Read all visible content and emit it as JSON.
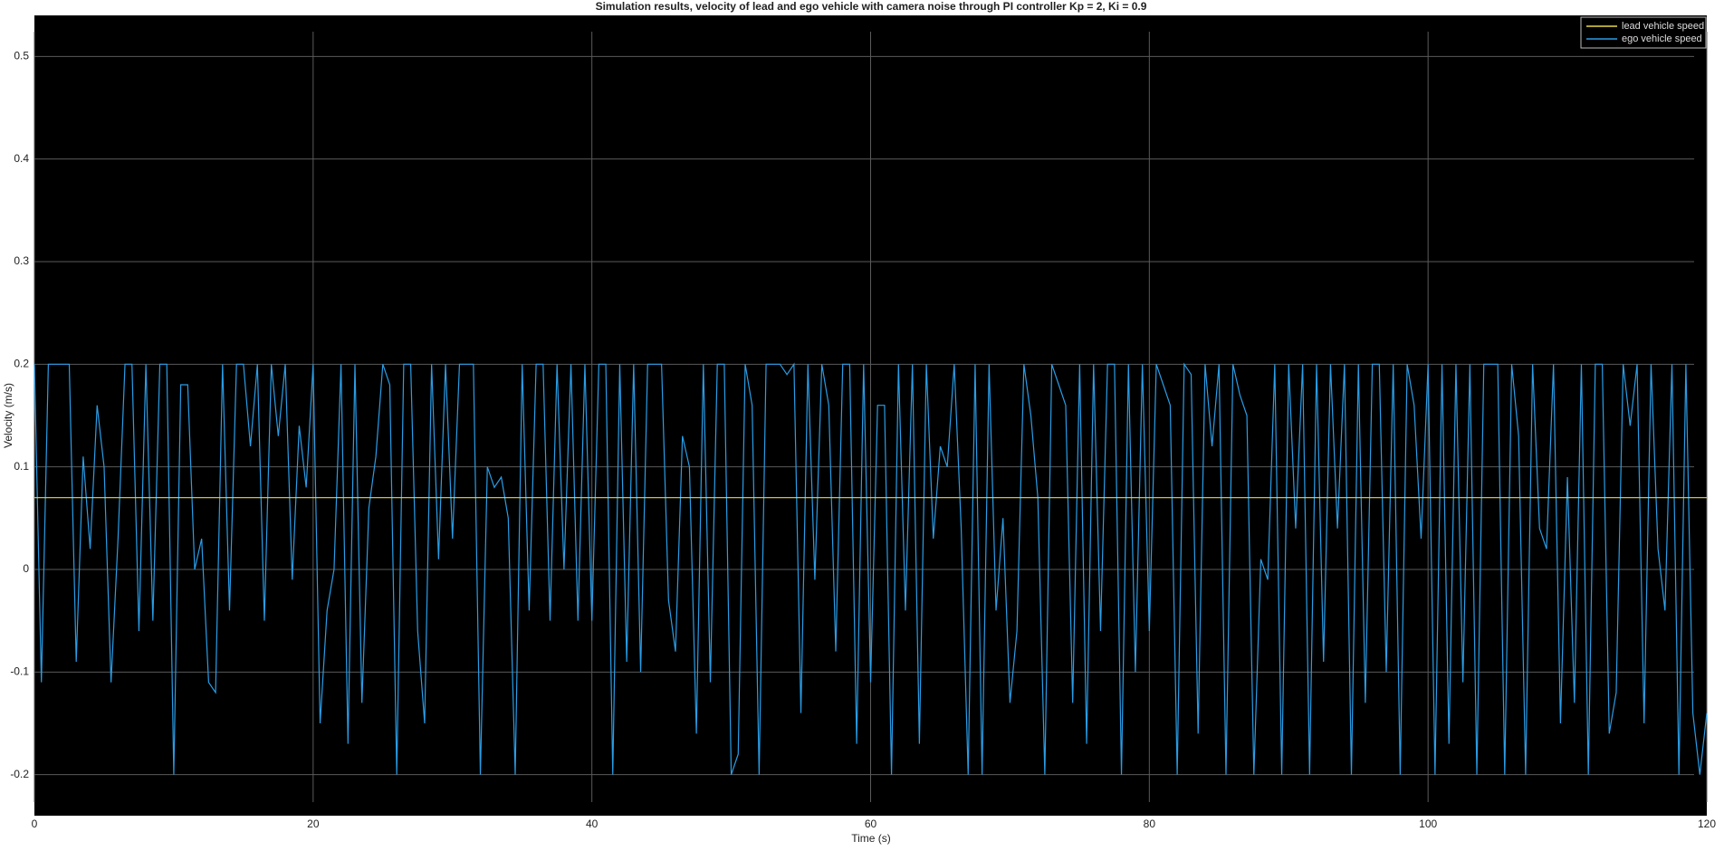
{
  "chart_data": {
    "type": "line",
    "title": "Simulation results, velocity of lead and ego vehicle with camera noise through PI controller Kp = 2, Ki = 0.9",
    "x_label": "Time (s)",
    "y_label": "Velocity (m/s)",
    "xlim": [
      0,
      120
    ],
    "xticks": [
      0,
      20,
      40,
      60,
      80,
      100,
      120
    ],
    "ylim": [
      -0.24,
      0.54
    ],
    "yticks": [
      -0.2,
      -0.1,
      0,
      0.1,
      0.2,
      0.3,
      0.4,
      0.5
    ],
    "grid": true,
    "legend": "upper right",
    "series": [
      {
        "name": "lead vehicle speed",
        "color": "#e8d84a",
        "x": [
          0,
          120
        ],
        "values": [
          0.07,
          0.07
        ]
      },
      {
        "name": "ego vehicle speed",
        "color": "#2a9de6",
        "x": [
          0,
          0.5,
          1,
          1.5,
          2,
          2.5,
          3,
          3.5,
          4,
          4.5,
          5,
          5.5,
          6,
          6.5,
          7,
          7.5,
          8,
          8.5,
          9,
          9.5,
          10,
          10.5,
          11,
          11.5,
          12,
          12.5,
          13,
          13.5,
          14,
          14.5,
          15,
          15.5,
          16,
          16.5,
          17,
          17.5,
          18,
          18.5,
          19,
          19.5,
          20,
          20.5,
          21,
          21.5,
          22,
          22.5,
          23,
          23.5,
          24,
          24.5,
          25,
          25.5,
          26,
          26.5,
          27,
          27.5,
          28,
          28.5,
          29,
          29.5,
          30,
          30.5,
          31,
          31.5,
          32,
          32.5,
          33,
          33.5,
          34,
          34.5,
          35,
          35.5,
          36,
          36.5,
          37,
          37.5,
          38,
          38.5,
          39,
          39.5,
          40,
          40.5,
          41,
          41.5,
          42,
          42.5,
          43,
          43.5,
          44,
          44.5,
          45,
          45.5,
          46,
          46.5,
          47,
          47.5,
          48,
          48.5,
          49,
          49.5,
          50,
          50.5,
          51,
          51.5,
          52,
          52.5,
          53,
          53.5,
          54,
          54.5,
          55,
          55.5,
          56,
          56.5,
          57,
          57.5,
          58,
          58.5,
          59,
          59.5,
          60,
          60.5,
          61,
          61.5,
          62,
          62.5,
          63,
          63.5,
          64,
          64.5,
          65,
          65.5,
          66,
          66.5,
          67,
          67.5,
          68,
          68.5,
          69,
          69.5,
          70,
          70.5,
          71,
          71.5,
          72,
          72.5,
          73,
          73.5,
          74,
          74.5,
          75,
          75.5,
          76,
          76.5,
          77,
          77.5,
          78,
          78.5,
          79,
          79.5,
          80,
          80.5,
          81,
          81.5,
          82,
          82.5,
          83,
          83.5,
          84,
          84.5,
          85,
          85.5,
          86,
          86.5,
          87,
          87.5,
          88,
          88.5,
          89,
          89.5,
          90,
          90.5,
          91,
          91.5,
          92,
          92.5,
          93,
          93.5,
          94,
          94.5,
          95,
          95.5,
          96,
          96.5,
          97,
          97.5,
          98,
          98.5,
          99,
          99.5,
          100,
          100.5,
          101,
          101.5,
          102,
          102.5,
          103,
          103.5,
          104,
          104.5,
          105,
          105.5,
          106,
          106.5,
          107,
          107.5,
          108,
          108.5,
          109,
          109.5,
          110,
          110.5,
          111,
          111.5,
          112,
          112.5,
          113,
          113.5,
          114,
          114.5,
          115,
          115.5,
          116,
          116.5,
          117,
          117.5,
          118,
          118.5,
          119,
          119.5,
          120
        ],
        "values": [
          0.2,
          -0.11,
          0.2,
          0.2,
          0.2,
          0.2,
          -0.09,
          0.11,
          0.02,
          0.16,
          0.1,
          -0.11,
          0.03,
          0.2,
          0.2,
          -0.06,
          0.2,
          -0.05,
          0.2,
          0.2,
          -0.2,
          0.18,
          0.18,
          0,
          0.03,
          -0.11,
          -0.12,
          0.2,
          -0.04,
          0.2,
          0.2,
          0.12,
          0.2,
          -0.05,
          0.2,
          0.13,
          0.2,
          -0.01,
          0.14,
          0.08,
          0.2,
          -0.15,
          -0.04,
          0,
          0.2,
          -0.17,
          0.2,
          -0.13,
          0.06,
          0.11,
          0.2,
          0.18,
          -0.2,
          0.2,
          0.2,
          -0.06,
          -0.15,
          0.2,
          0.01,
          0.2,
          0.03,
          0.2,
          0.2,
          0.2,
          -0.2,
          0.1,
          0.08,
          0.09,
          0.05,
          -0.2,
          0.2,
          -0.04,
          0.2,
          0.2,
          -0.05,
          0.2,
          0,
          0.2,
          -0.05,
          0.2,
          -0.05,
          0.2,
          0.2,
          -0.2,
          0.2,
          -0.09,
          0.2,
          -0.1,
          0.2,
          0.2,
          0.2,
          -0.03,
          -0.08,
          0.13,
          0.1,
          -0.16,
          0.2,
          -0.11,
          0.2,
          0.2,
          -0.2,
          -0.18,
          0.2,
          0.16,
          -0.2,
          0.2,
          0.2,
          0.2,
          0.19,
          0.2,
          -0.14,
          0.2,
          -0.01,
          0.2,
          0.16,
          -0.08,
          0.2,
          0.2,
          -0.17,
          0.2,
          -0.11,
          0.16,
          0.16,
          -0.2,
          0.2,
          -0.04,
          0.2,
          -0.17,
          0.2,
          0.03,
          0.12,
          0.1,
          0.2,
          0.04,
          -0.2,
          0.2,
          -0.2,
          0.2,
          -0.04,
          0.05,
          -0.13,
          -0.06,
          0.2,
          0.15,
          0.07,
          -0.2,
          0.2,
          0.18,
          0.16,
          -0.13,
          0.2,
          -0.17,
          0.2,
          -0.06,
          0.2,
          0.2,
          -0.2,
          0.2,
          -0.1,
          0.2,
          -0.06,
          0.2,
          0.18,
          0.16,
          -0.2,
          0.2,
          0.19,
          -0.16,
          0.2,
          0.12,
          0.2,
          -0.2,
          0.2,
          0.17,
          0.15,
          -0.2,
          0.01,
          -0.01,
          0.2,
          -0.2,
          0.2,
          0.04,
          0.2,
          -0.2,
          0.2,
          -0.09,
          0.2,
          0.04,
          0.2,
          -0.2,
          0.2,
          -0.13,
          0.2,
          0.2,
          -0.1,
          0.2,
          -0.2,
          0.2,
          0.16,
          0.03,
          0.2,
          -0.2,
          0.2,
          -0.17,
          0.2,
          -0.11,
          0.2,
          -0.2,
          0.2,
          0.2,
          0.2,
          -0.2,
          0.2,
          0.13,
          -0.2,
          0.2,
          0.04,
          0.02,
          0.2,
          -0.15,
          0.09,
          -0.13,
          0.2,
          -0.2,
          0.2,
          0.2,
          -0.16,
          -0.12,
          0.2,
          0.14,
          0.2,
          -0.15,
          0.2,
          0.02,
          -0.04,
          0.2,
          -0.2,
          0.2,
          -0.14,
          -0.2,
          -0.14
        ]
      }
    ]
  }
}
